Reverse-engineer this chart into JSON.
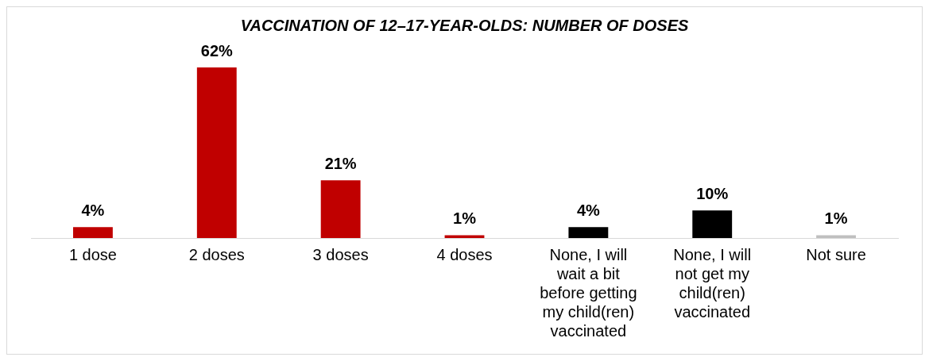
{
  "chart_data": {
    "type": "bar",
    "title": "VACCINATION OF 12–17-YEAR-OLDS: NUMBER OF DOSES",
    "categories": [
      "1 dose",
      "2 doses",
      "3 doses",
      "4 doses",
      "None, I will wait a bit before getting my child(ren) vaccinated",
      "None, I will not get my child(ren) vaccinated",
      "Not sure"
    ],
    "values": [
      4,
      62,
      21,
      1,
      4,
      10,
      1
    ],
    "colors": [
      "#c00000",
      "#c00000",
      "#c00000",
      "#c00000",
      "#000000",
      "#000000",
      "#bfbfbf"
    ],
    "value_labels": [
      "4%",
      "62%",
      "21%",
      "1%",
      "4%",
      "10%",
      "1%"
    ],
    "grid": false,
    "legend": false
  }
}
